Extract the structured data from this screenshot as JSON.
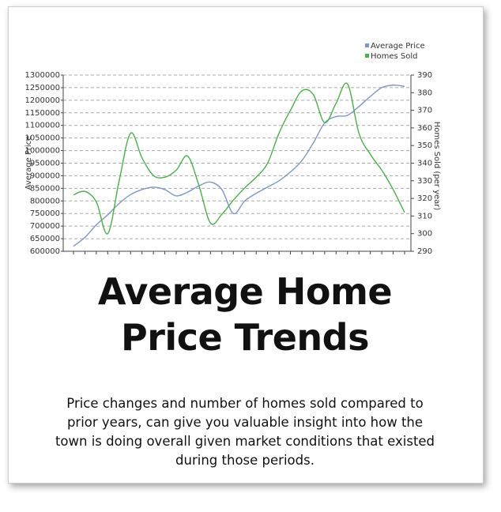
{
  "chart_data": {
    "type": "line",
    "categories": [
      null,
      null,
      null,
      null,
      null,
      null,
      null,
      null,
      null,
      null,
      null,
      null,
      null,
      null,
      null,
      null,
      null,
      null,
      null,
      null,
      null,
      null,
      null,
      null,
      null,
      null,
      null,
      null,
      null,
      null
    ],
    "ylabel": "Average Price",
    "y2label": "Homes Sold (per year)",
    "ylim": [
      600000,
      1300000
    ],
    "yticks": [
      600000,
      650000,
      700000,
      750000,
      800000,
      850000,
      900000,
      950000,
      1000000,
      1050000,
      1100000,
      1150000,
      1200000,
      1250000,
      1300000
    ],
    "y2lim": [
      290,
      390
    ],
    "y2ticks": [
      290,
      300,
      310,
      320,
      330,
      340,
      350,
      360,
      370,
      380,
      390
    ],
    "grid": true,
    "legend": "top-right",
    "series": [
      {
        "name": "Average Price",
        "color": "#7f96c6",
        "values": [
          620000,
          655000,
          705000,
          745000,
          790000,
          825000,
          845000,
          855000,
          845000,
          820000,
          835000,
          860000,
          875000,
          845000,
          750000,
          800000,
          830000,
          855000,
          880000,
          915000,
          960000,
          1030000,
          1110000,
          1135000,
          1140000,
          1175000,
          1215000,
          1250000,
          1260000,
          1255000
        ]
      },
      {
        "name": "Homes Sold",
        "color": "#4cae4c",
        "axis": "y2",
        "values": [
          322,
          324,
          318,
          300,
          330,
          357,
          343,
          333,
          332,
          336,
          344,
          327,
          306,
          311,
          319,
          326,
          332,
          340,
          357,
          370,
          381,
          379,
          363,
          374,
          385,
          357,
          345,
          336,
          325,
          312
        ]
      }
    ]
  },
  "title": "Average Home Price Trends",
  "description": "Price changes and number of homes sold compared to prior years, can give you valuable insight into how the town is doing overall given market conditions that existed during those periods."
}
